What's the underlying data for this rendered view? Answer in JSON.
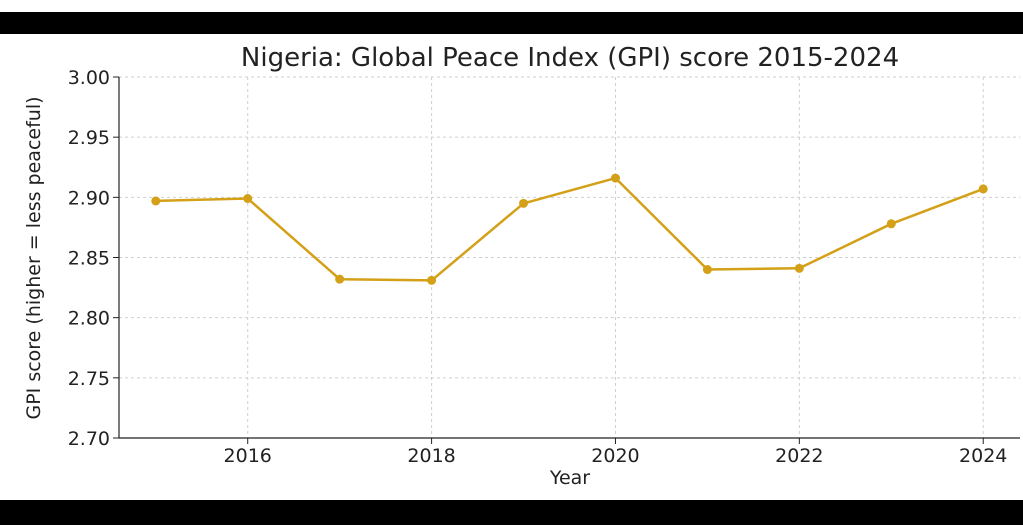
{
  "chart_data": {
    "type": "line",
    "title": "Nigeria: Global Peace Index (GPI) score 2015-2024",
    "xlabel": "Year",
    "ylabel": "GPI score (higher = less peaceful)",
    "x": [
      2015,
      2016,
      2017,
      2018,
      2019,
      2020,
      2021,
      2022,
      2023,
      2024
    ],
    "series": [
      {
        "values": [
          2.897,
          2.899,
          2.832,
          2.831,
          2.895,
          2.916,
          2.84,
          2.841,
          2.878,
          2.907
        ],
        "color": "#d4a017"
      }
    ],
    "xlim": [
      2014.6,
      2024.4
    ],
    "ylim": [
      2.7,
      3.0
    ],
    "x_ticks": [
      "2016",
      "2018",
      "2020",
      "2022",
      "2024"
    ],
    "y_ticks": [
      "2.70",
      "2.75",
      "2.80",
      "2.85",
      "2.90",
      "2.95",
      "3.00"
    ],
    "grid": true,
    "legend": "none"
  }
}
